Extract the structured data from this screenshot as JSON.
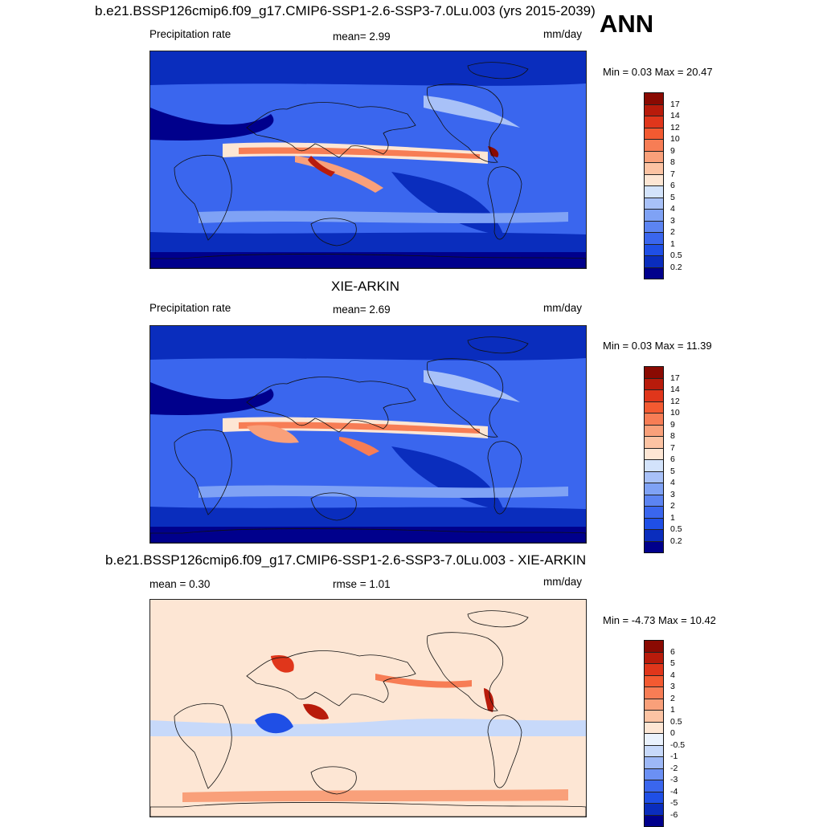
{
  "season": "ANN",
  "colors": {
    "abs": [
      "#00008c",
      "#0a2dbd",
      "#1f4fe6",
      "#3a66ee",
      "#5c84f2",
      "#7fa2f5",
      "#a8c1f8",
      "#d3e3fb",
      "#fde6d4",
      "#fcc3a3",
      "#f9a07a",
      "#f77d55",
      "#f35a31",
      "#e0361b",
      "#b81b0b",
      "#8a0a02"
    ],
    "diff": [
      "#00008c",
      "#0a2dbd",
      "#1f4fe6",
      "#3a66ee",
      "#6b90f4",
      "#9db8f7",
      "#c7d9fa",
      "#eaf2fd",
      "#fde6d4",
      "#fcc3a3",
      "#f9a07a",
      "#f77d55",
      "#f35a31",
      "#e0361b",
      "#b81b0b",
      "#8a0a02"
    ]
  },
  "panels": [
    {
      "title": "b.e21.BSSP126cmip6.f09_g17.CMIP6-SSP1-2.6-SSP3-7.0Lu.003 (yrs 2015-2039)",
      "left_label": "Precipitation rate",
      "center_label": "mean=   2.99",
      "units": "mm/day",
      "minmax": "Min =   0.03 Max =  20.47",
      "levels": [
        "17",
        "14",
        "12",
        "10",
        "9",
        "8",
        "7",
        "6",
        "5",
        "4",
        "3",
        "2",
        "1",
        "0.5",
        "0.2"
      ]
    },
    {
      "title": "XIE-ARKIN",
      "left_label": "Precipitation rate",
      "center_label": "mean=   2.69",
      "units": "mm/day",
      "minmax": "Min =   0.03 Max =  11.39",
      "levels": [
        "17",
        "14",
        "12",
        "10",
        "9",
        "8",
        "7",
        "6",
        "5",
        "4",
        "3",
        "2",
        "1",
        "0.5",
        "0.2"
      ]
    },
    {
      "title": "b.e21.BSSP126cmip6.f09_g17.CMIP6-SSP1-2.6-SSP3-7.0Lu.003 - XIE-ARKIN",
      "left_label": "mean =   0.30",
      "center_label": "rmse =   1.01",
      "units": "mm/day",
      "minmax": "Min =  -4.73 Max =  10.42",
      "levels": [
        "6",
        "5",
        "4",
        "3",
        "2",
        "1",
        "0.5",
        "0",
        "-0.5",
        "-1",
        "-2",
        "-3",
        "-4",
        "-5",
        "-6"
      ]
    }
  ],
  "chart_data": [
    {
      "type": "heatmap",
      "title": "b.e21.BSSP126cmip6.f09_g17.CMIP6-SSP1-2.6-SSP3-7.0Lu.003 (yrs 2015-2039)",
      "variable": "Precipitation rate",
      "units": "mm/day",
      "mean": 2.99,
      "min": 0.03,
      "max": 20.47,
      "contour_levels": [
        0.2,
        0.5,
        1,
        2,
        3,
        4,
        5,
        6,
        7,
        8,
        9,
        10,
        12,
        14,
        17
      ]
    },
    {
      "type": "heatmap",
      "title": "XIE-ARKIN",
      "variable": "Precipitation rate",
      "units": "mm/day",
      "mean": 2.69,
      "min": 0.03,
      "max": 11.39,
      "contour_levels": [
        0.2,
        0.5,
        1,
        2,
        3,
        4,
        5,
        6,
        7,
        8,
        9,
        10,
        12,
        14,
        17
      ]
    },
    {
      "type": "heatmap",
      "title": "b.e21.BSSP126cmip6.f09_g17.CMIP6-SSP1-2.6-SSP3-7.0Lu.003 - XIE-ARKIN",
      "units": "mm/day",
      "mean": 0.3,
      "rmse": 1.01,
      "min": -4.73,
      "max": 10.42,
      "contour_levels": [
        -6,
        -5,
        -4,
        -3,
        -2,
        -1,
        -0.5,
        0,
        0.5,
        1,
        2,
        3,
        4,
        5,
        6
      ]
    }
  ]
}
